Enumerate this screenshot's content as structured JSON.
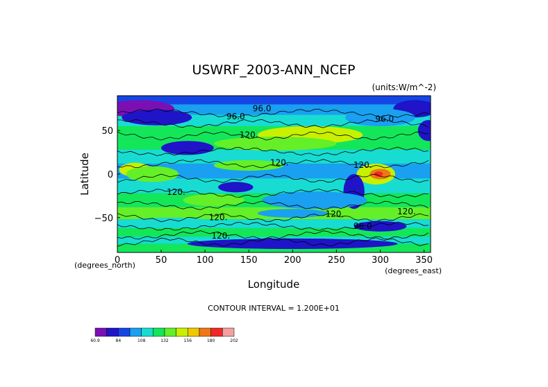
{
  "chart_data": {
    "type": "heatmap",
    "title": "USWRF_2003-ANN_NCEP",
    "units": "(units:W/m^-2)",
    "xlabel": "Longitude",
    "ylabel": "Latitude",
    "x_unit_label": "(degrees_east)",
    "y_unit_label": "(degrees_north)",
    "xlim": [
      0,
      357.5
    ],
    "ylim": [
      -90,
      90
    ],
    "xticks": [
      0,
      50,
      100,
      150,
      200,
      250,
      300,
      350
    ],
    "yticks": [
      50,
      0,
      -50
    ],
    "x_tick_labels": [
      "0",
      "50",
      "100",
      "150",
      "200",
      "250",
      "300",
      "350"
    ],
    "y_tick_labels": [
      "50",
      "0",
      "−50"
    ],
    "contour_interval_text": "CONTOUR INTERVAL = 1.200E+01",
    "contour_labels": [
      {
        "text": "96.0",
        "lon": 165,
        "lat": 72
      },
      {
        "text": "96.0",
        "lon": 135,
        "lat": 63
      },
      {
        "text": "120.",
        "lon": 150,
        "lat": 42
      },
      {
        "text": "96.0",
        "lon": 305,
        "lat": 60
      },
      {
        "text": "120.",
        "lon": 185,
        "lat": 10
      },
      {
        "text": "120.",
        "lon": 280,
        "lat": 7
      },
      {
        "text": "120.",
        "lon": 67,
        "lat": -24
      },
      {
        "text": "120.",
        "lon": 115,
        "lat": -53
      },
      {
        "text": "120.",
        "lon": 248,
        "lat": -49
      },
      {
        "text": "120.",
        "lon": 330,
        "lat": -46
      },
      {
        "text": "96.0",
        "lon": 280,
        "lat": -63
      },
      {
        "text": "120.",
        "lon": 118,
        "lat": -74
      }
    ],
    "colorbar": {
      "colors": [
        "#7a10b4",
        "#1f14c8",
        "#1446e6",
        "#1aa0f0",
        "#18dcd2",
        "#14e65a",
        "#64ef28",
        "#c8f000",
        "#f0c800",
        "#f07814",
        "#f02828",
        "#f5a0a0"
      ],
      "tick_labels": [
        "60.9",
        "84",
        "108",
        "132",
        "156",
        "180",
        "202"
      ]
    },
    "colors": {
      "background": "#1aa0f0",
      "band_green": "#14e65a",
      "band_cyan": "#18dcd2",
      "band_blue": "#1446e6",
      "band_navy": "#1f14c8",
      "band_purple": "#7a10b4",
      "band_lime": "#64ef28",
      "band_yellow": "#c8f000",
      "band_orange": "#f07814",
      "band_red": "#f02828"
    }
  }
}
